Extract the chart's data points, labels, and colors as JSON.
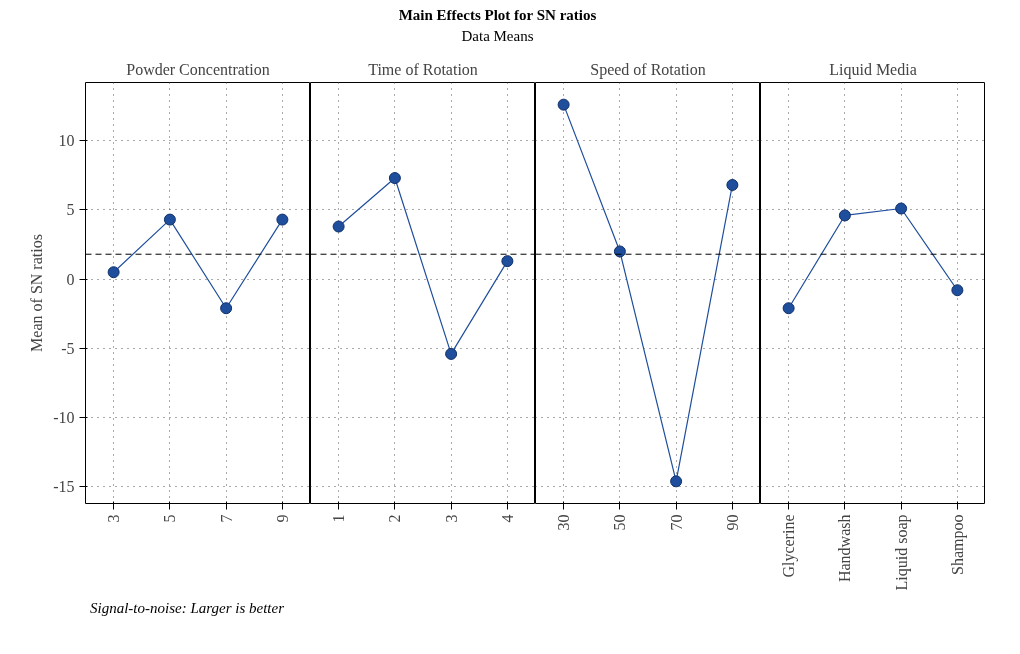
{
  "chart_data": [
    {
      "type": "line",
      "xlabel": "Powder Concentration",
      "ylabel": "Mean of SN ratios",
      "categories": [
        "3",
        "5",
        "7",
        "9"
      ],
      "values": [
        0.5,
        4.3,
        -2.1,
        4.3
      ],
      "color": "#1f4e9c",
      "marker": "circle",
      "line_style": "solid",
      "grid": true,
      "ylim": [
        -16.2,
        14.2
      ],
      "yticks": [
        -15,
        -10,
        -5,
        0,
        5,
        10
      ],
      "ref_lines": [
        {
          "axis": "y",
          "value": 1.8,
          "line_style": "dashed"
        }
      ],
      "annotations": [
        "Signal-to-noise: Larger is better"
      ]
    },
    {
      "type": "line",
      "title": "Main Effects Plot for SN ratios",
      "subtitle": "Data Means",
      "xlabel": "Time of Rotation",
      "categories": [
        "1",
        "2",
        "3",
        "4"
      ],
      "values": [
        3.8,
        7.3,
        -5.4,
        1.3
      ],
      "color": "#1f4e9c",
      "marker": "circle",
      "line_style": "solid",
      "grid": true,
      "ylim": [
        -16.2,
        14.2
      ],
      "yticks": [
        -15,
        -10,
        -5,
        0,
        5,
        10
      ],
      "tick_labels": "x",
      "ref_lines": [
        {
          "axis": "y",
          "value": 1.8,
          "line_style": "dashed"
        }
      ]
    },
    {
      "type": "line",
      "xlabel": "Speed of Rotation",
      "categories": [
        "30",
        "50",
        "70",
        "90"
      ],
      "values": [
        12.6,
        2.0,
        -14.6,
        6.8
      ],
      "color": "#1f4e9c",
      "marker": "circle",
      "line_style": "solid",
      "grid": true,
      "ylim": [
        -16.2,
        14.2
      ],
      "yticks": [
        -15,
        -10,
        -5,
        0,
        5,
        10
      ],
      "tick_labels": "x",
      "ref_lines": [
        {
          "axis": "y",
          "value": 1.8,
          "line_style": "dashed"
        }
      ]
    },
    {
      "type": "line",
      "xlabel": "Liquid Media",
      "categories": [
        "Glycerine",
        "Handwash",
        "Liquid soap",
        "Shampoo"
      ],
      "values": [
        -2.1,
        4.6,
        5.1,
        -0.8
      ],
      "color": "#1f4e9c",
      "marker": "circle",
      "line_style": "solid",
      "grid": true,
      "ylim": [
        -16.2,
        14.2
      ],
      "yticks": [
        -15,
        -10,
        -5,
        0,
        5,
        10
      ],
      "tick_labels": "x",
      "ref_lines": [
        {
          "axis": "y",
          "value": 1.8,
          "line_style": "dashed"
        }
      ]
    }
  ]
}
